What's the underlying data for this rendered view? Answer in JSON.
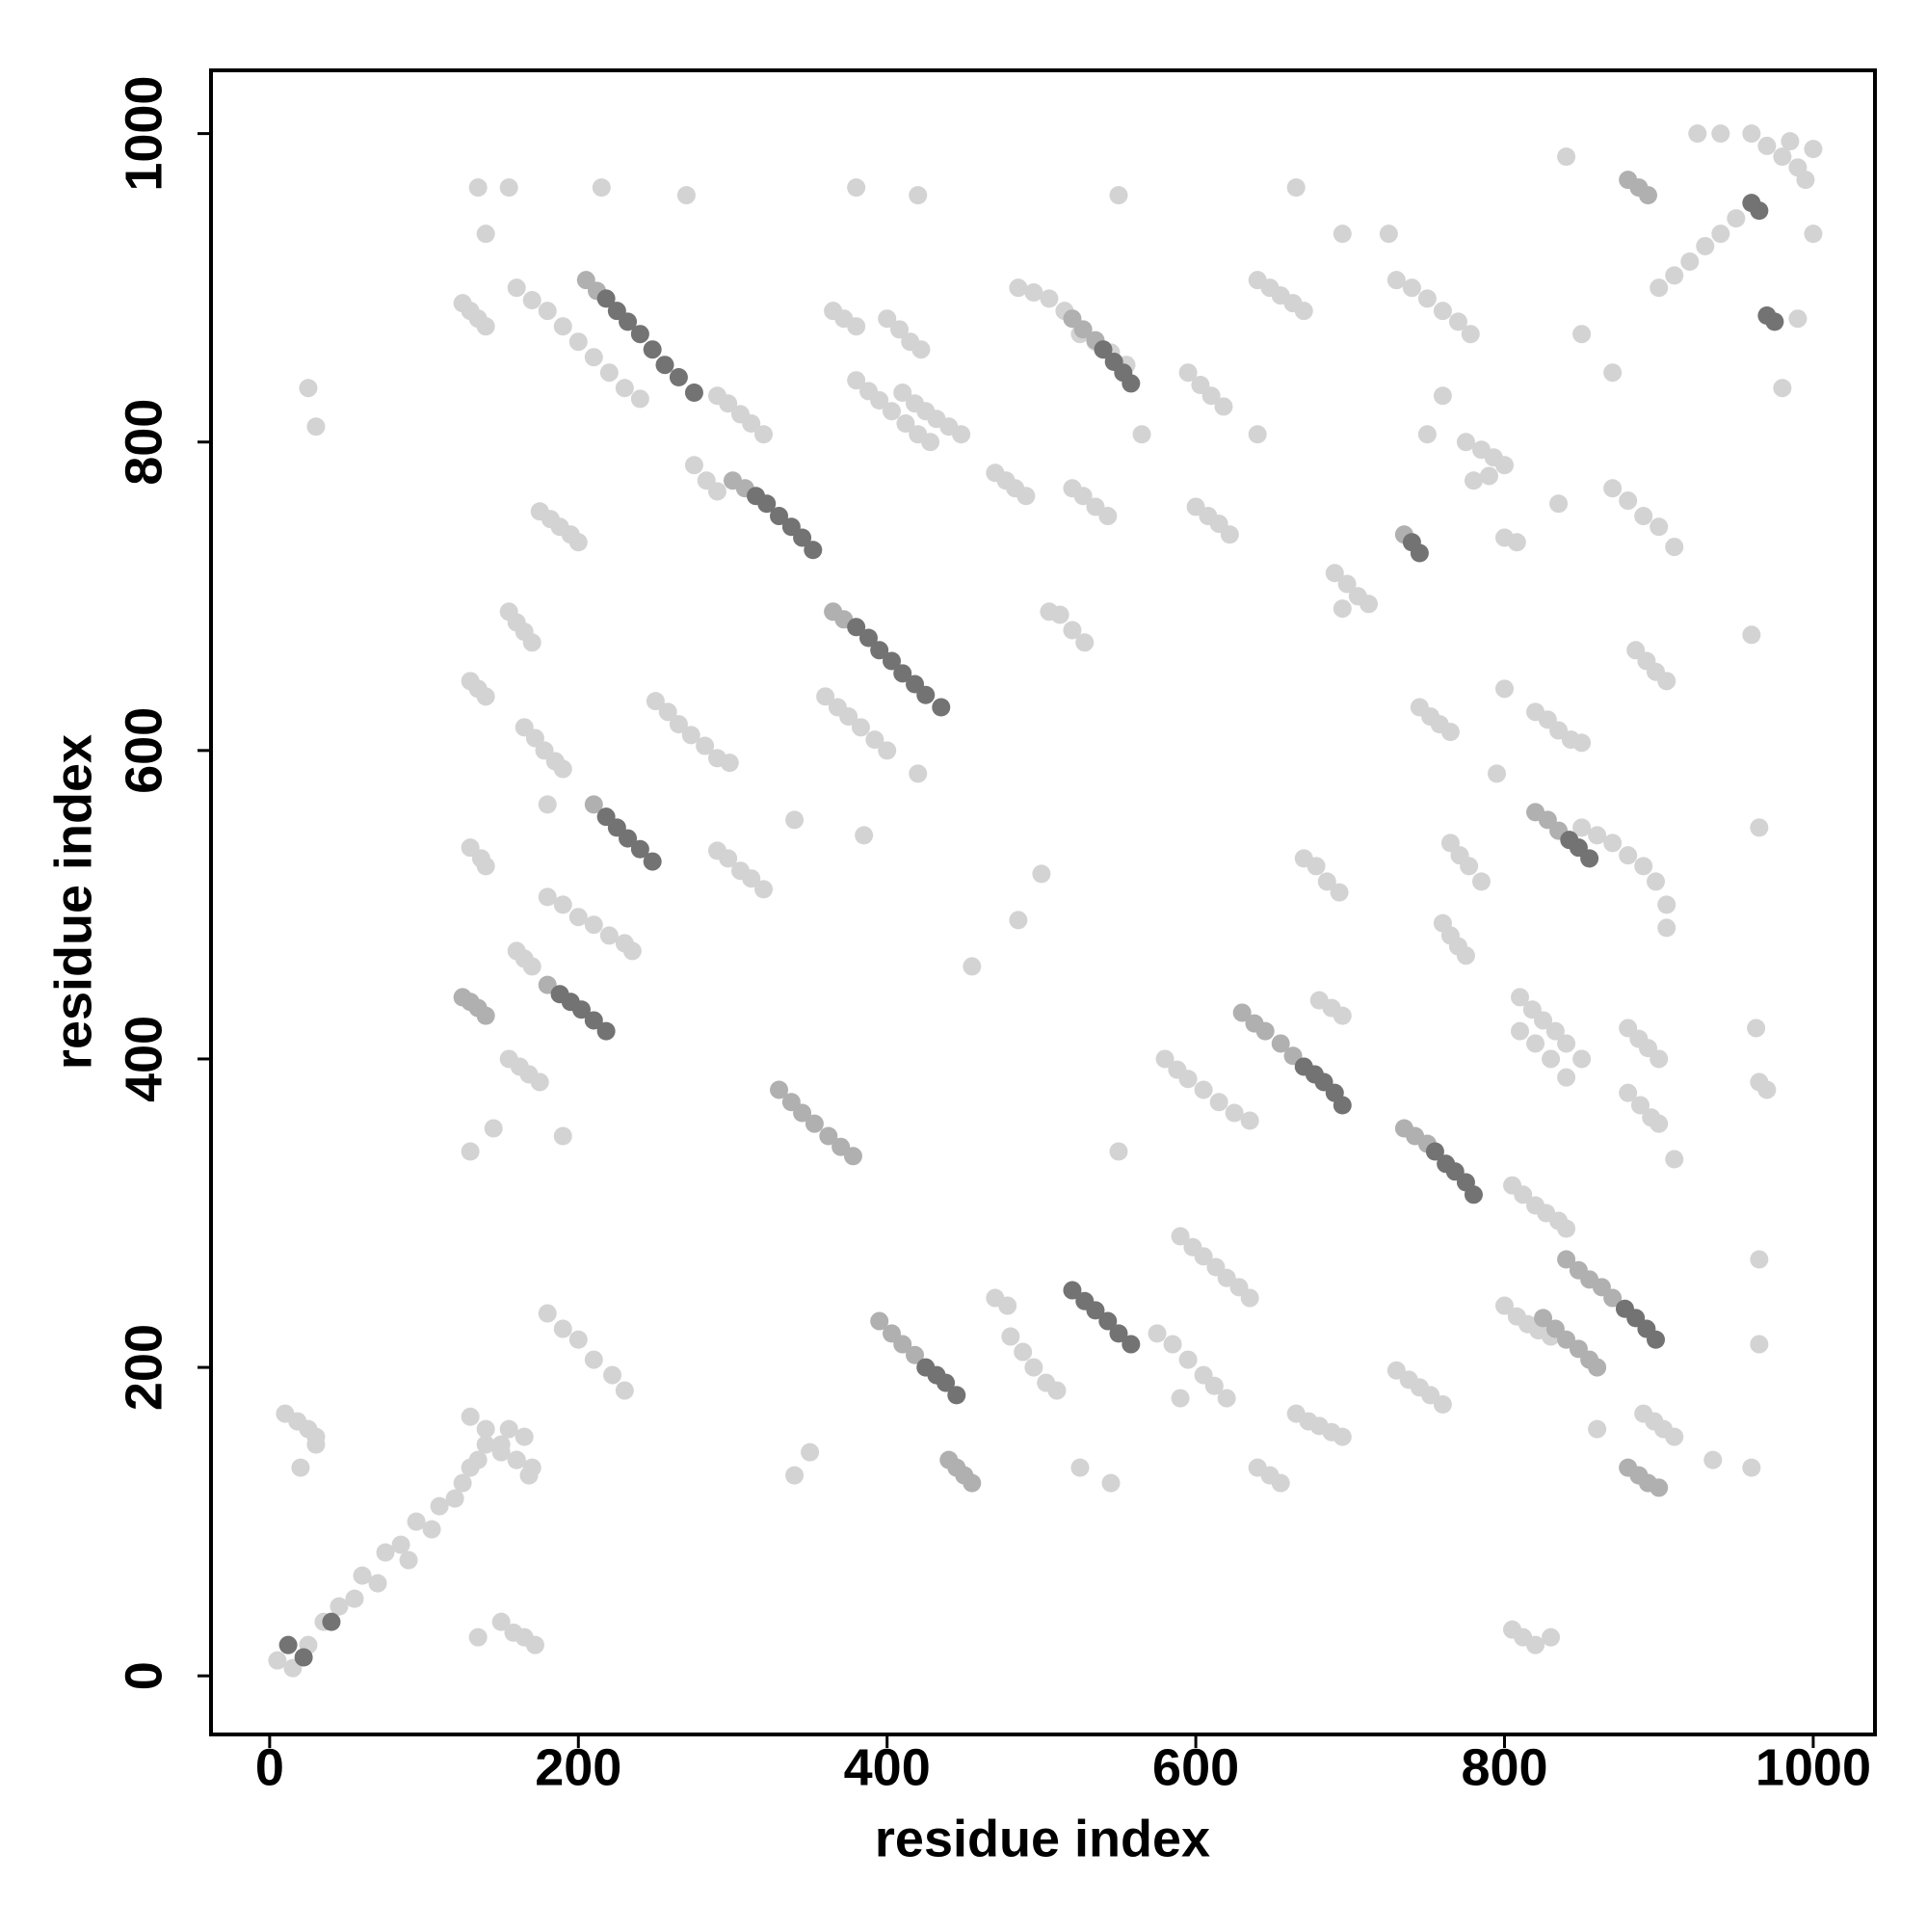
{
  "chart_data": {
    "type": "scatter",
    "xlabel": "residue index",
    "ylabel": "residue index",
    "xlim": [
      -38,
      1040
    ],
    "ylim": [
      -38,
      1041
    ],
    "xticks": [
      0,
      200,
      400,
      600,
      800,
      1000
    ],
    "yticks": [
      0,
      200,
      400,
      600,
      800,
      1000
    ],
    "grid": false,
    "series": [
      {
        "color": "#d3d3d3",
        "x": [
          5,
          15,
          25,
          35,
          45,
          55,
          60,
          70,
          75,
          85,
          90,
          95,
          105,
          110,
          120,
          125,
          130,
          135,
          140,
          150,
          155,
          165,
          170,
          160,
          10,
          18,
          25,
          30,
          20,
          150,
          158,
          165,
          172,
          135,
          805,
          812,
          820,
          830,
          130,
          140,
          150,
          160,
          168,
          180,
          190,
          200,
          210,
          222,
          230,
          480,
          488,
          495,
          503,
          510,
          470,
          478,
          575,
          585,
          595,
          605,
          612,
          620,
          590,
          640,
          648,
          655,
          665,
          673,
          680,
          688,
          695,
          730,
          738,
          745,
          752,
          760,
          800,
          808,
          815,
          822,
          830,
          890,
          897,
          903,
          910,
          880,
          887,
          893,
          900,
          880,
          888,
          895,
          900,
          963,
          965,
          970,
          760,
          765,
          770,
          775,
          765,
          771,
          777,
          785,
          680,
          688,
          695,
          670,
          678,
          685,
          693,
          745,
          752,
          758,
          765,
          820,
          828,
          835,
          843,
          850,
          885,
          892,
          898,
          905,
          870,
          880,
          890,
          900,
          910,
          800,
          808,
          775,
          785,
          793,
          800,
          790,
          780,
          690,
          698,
          705,
          712,
          695,
          600,
          608,
          615,
          622,
          595,
          603,
          610,
          618,
          520,
          527,
          535,
          543,
          470,
          477,
          483,
          490,
          505,
          512,
          520,
          528,
          365,
          372,
          380,
          400,
          408,
          415,
          422,
          160,
          170,
          180,
          190,
          200,
          210,
          220,
          230,
          240,
          125,
          130,
          135,
          140,
          290,
          297,
          305,
          312,
          320,
          275,
          283,
          290,
          360,
          368,
          375,
          383,
          392,
          400,
          250,
          258,
          265,
          273,
          282,
          290,
          298,
          380,
          388,
          395,
          403,
          412,
          420,
          428,
          410,
          418,
          425,
          432,
          440,
          448,
          485,
          495,
          505,
          515,
          525,
          535,
          545,
          555,
          580,
          588,
          595,
          605,
          615,
          625,
          635,
          590,
          598,
          605,
          613,
          620,
          628,
          635,
          900,
          910,
          920,
          930,
          940,
          950,
          960,
          970,
          980,
          990,
          995,
          985,
          730,
          740,
          750,
          760,
          770,
          778,
          640,
          648,
          655,
          663,
          670,
          175,
          182,
          188,
          195,
          200,
          155,
          160,
          165,
          170,
          130,
          135,
          140,
          165,
          172,
          178,
          185,
          190,
          180,
          290,
          297,
          305,
          312,
          320,
          130,
          137,
          140,
          180,
          190,
          200,
          210,
          220,
          230,
          235,
          160,
          165,
          170,
          155,
          162,
          168,
          175,
          810,
          818,
          825,
          833,
          840,
          850,
          810,
          820,
          830,
          840,
          805,
          812,
          820,
          827,
          835,
          840,
          850,
          860,
          870,
          880,
          890,
          898,
          905,
          905,
          135,
          155,
          215,
          270,
          380,
          420,
          550,
          665,
          840,
          1000,
          940,
          925,
          695,
          725,
          30,
          25,
          565,
          640,
          385,
          340,
          420,
          500,
          485,
          455,
          145,
          130,
          190,
          550,
          340,
          350,
          910,
          965,
          980,
          990,
          860,
          935,
          960,
          965,
          965,
          1000,
          835,
          800,
          795,
          960,
          850,
          870,
          545,
          525,
          140,
          750,
          760,
          30
        ],
        "values": [
          10,
          5,
          20,
          35,
          45,
          50,
          65,
          60,
          80,
          85,
          75,
          100,
          95,
          110,
          115,
          125,
          135,
          140,
          150,
          145,
          160,
          155,
          135,
          140,
          170,
          165,
          160,
          155,
          135,
          35,
          28,
          25,
          20,
          25,
          30,
          25,
          20,
          25,
          168,
          160,
          150,
          140,
          130,
          235,
          225,
          218,
          205,
          195,
          185,
          220,
          210,
          200,
          190,
          185,
          245,
          240,
          222,
          215,
          205,
          195,
          188,
          180,
          180,
          135,
          130,
          125,
          170,
          165,
          162,
          158,
          155,
          198,
          192,
          187,
          182,
          176,
          240,
          233,
          228,
          224,
          220,
          170,
          165,
          160,
          155,
          420,
          413,
          407,
          400,
          378,
          370,
          362,
          358,
          420,
          385,
          380,
          488,
          480,
          473,
          467,
          540,
          532,
          525,
          515,
          438,
          433,
          428,
          530,
          525,
          515,
          508,
          628,
          622,
          617,
          612,
          625,
          620,
          613,
          607,
          605,
          665,
          658,
          651,
          645,
          770,
          762,
          752,
          745,
          732,
          738,
          735,
          800,
          795,
          790,
          785,
          778,
          775,
          715,
          708,
          700,
          695,
          692,
          758,
          752,
          747,
          740,
          845,
          837,
          830,
          823,
          770,
          765,
          758,
          752,
          780,
          775,
          770,
          765,
          690,
          688,
          678,
          670,
          885,
          880,
          875,
          880,
          873,
          865,
          860,
          900,
          892,
          885,
          875,
          865,
          855,
          845,
          835,
          828,
          890,
          885,
          880,
          875,
          830,
          825,
          818,
          812,
          805,
          785,
          775,
          768,
          635,
          628,
          622,
          615,
          607,
          600,
          632,
          625,
          617,
          610,
          603,
          595,
          592,
          840,
          833,
          827,
          820,
          812,
          805,
          800,
          832,
          825,
          820,
          815,
          810,
          805,
          900,
          897,
          893,
          885,
          870,
          865,
          858,
          850,
          400,
          393,
          387,
          380,
          372,
          365,
          360,
          285,
          278,
          272,
          265,
          258,
          252,
          245,
          900,
          908,
          917,
          927,
          935,
          945,
          1000,
          992,
          985,
          978,
          970,
          995,
          905,
          900,
          893,
          885,
          878,
          870,
          905,
          900,
          895,
          890,
          885,
          755,
          750,
          745,
          740,
          735,
          690,
          683,
          677,
          670,
          645,
          640,
          635,
          615,
          608,
          600,
          593,
          588,
          565,
          535,
          530,
          522,
          517,
          510,
          537,
          530,
          525,
          505,
          500,
          492,
          487,
          480,
          475,
          470,
          470,
          465,
          460,
          400,
          395,
          390,
          385,
          440,
          432,
          425,
          418,
          410,
          400,
          418,
          410,
          400,
          388,
          318,
          312,
          305,
          300,
          295,
          290,
          550,
          545,
          540,
          532,
          525,
          515,
          500,
          485,
          965,
          965,
          965,
          960,
          965,
          960,
          960,
          965,
          985,
          990,
          1000,
          1000,
          935,
          935,
          810,
          835,
          805,
          805,
          545,
          555,
          585,
          520,
          490,
          460,
          355,
          340,
          350,
          340,
          130,
          145,
          335,
          550,
          835,
          880,
          160,
          140,
          135,
          270,
          215,
          935,
          760,
          640,
          585,
          675,
          870,
          845,
          125,
          135,
          935,
          805,
          830,
          150
        ]
      },
      {
        "color": "#b0b0b0",
        "x": [
          125,
          130,
          135,
          140,
          330,
          338,
          345,
          353,
          362,
          370,
          378,
          395,
          403,
          410,
          418,
          440,
          445,
          450,
          455,
          825,
          833,
          840,
          848,
          855,
          860,
          880,
          887,
          893,
          900,
          630,
          638,
          645,
          655,
          663,
          735,
          742,
          750,
          820,
          828,
          835,
          840,
          848,
          855,
          863,
          870,
          520,
          527,
          535,
          880,
          887,
          893,
          735,
          205,
          212,
          210,
          180,
          300,
          308,
          365,
          372
        ],
        "values": [
          440,
          437,
          433,
          428,
          380,
          372,
          365,
          358,
          350,
          343,
          337,
          230,
          222,
          215,
          208,
          140,
          135,
          130,
          125,
          232,
          225,
          218,
          212,
          205,
          200,
          135,
          130,
          125,
          122,
          430,
          423,
          418,
          410,
          402,
          355,
          350,
          345,
          560,
          555,
          548,
          270,
          263,
          257,
          252,
          245,
          880,
          873,
          866,
          970,
          965,
          960,
          740,
          905,
          898,
          565,
          448,
          775,
          770,
          690,
          685
        ]
      },
      {
        "color": "#737373",
        "x": [
          218,
          225,
          232,
          240,
          248,
          256,
          265,
          275,
          315,
          322,
          330,
          338,
          345,
          352,
          380,
          388,
          395,
          403,
          410,
          418,
          425,
          435,
          218,
          225,
          232,
          240,
          248,
          188,
          195,
          202,
          210,
          218,
          425,
          432,
          438,
          445,
          520,
          528,
          535,
          543,
          550,
          558,
          670,
          677,
          683,
          690,
          695,
          755,
          762,
          768,
          775,
          780,
          878,
          885,
          892,
          898,
          842,
          848,
          855,
          540,
          547,
          553,
          558,
          960,
          965,
          970,
          975,
          740,
          745,
          12,
          22,
          40
        ],
        "values": [
          893,
          885,
          878,
          870,
          860,
          850,
          842,
          832,
          765,
          760,
          752,
          745,
          738,
          730,
          680,
          673,
          665,
          658,
          650,
          643,
          636,
          628,
          557,
          550,
          543,
          536,
          528,
          442,
          437,
          432,
          425,
          418,
          200,
          195,
          190,
          182,
          250,
          243,
          237,
          230,
          222,
          215,
          395,
          390,
          385,
          378,
          370,
          340,
          332,
          327,
          320,
          312,
          238,
          232,
          225,
          218,
          542,
          537,
          530,
          860,
          852,
          845,
          838,
          955,
          950,
          882,
          878,
          735,
          728,
          20,
          12,
          35
        ]
      }
    ]
  }
}
